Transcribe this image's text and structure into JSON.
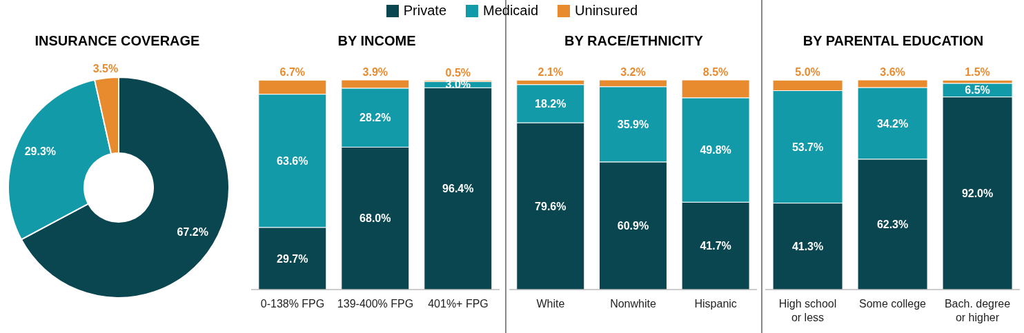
{
  "chart_data": [
    {
      "type": "donut",
      "title": "INSURANCE COVERAGE",
      "legend": "top",
      "categories": [
        "Private",
        "Medicaid",
        "Uninsured"
      ],
      "values": [
        67.2,
        29.3,
        3.5
      ],
      "colors": [
        "#0a4650",
        "#139aa8",
        "#e88a2e"
      ],
      "value_labels": [
        "67.2%",
        "29.3%",
        "3.5%"
      ]
    },
    {
      "type": "bar",
      "title": "BY INCOME",
      "stacked": true,
      "categories": [
        "0-138% FPG",
        "139-400% FPG",
        "401%+ FPG"
      ],
      "series": [
        {
          "color": "#0a4650",
          "values": [
            29.7,
            68.0,
            96.4
          ],
          "value_labels": [
            "29.7%",
            "68.0%",
            "96.4%"
          ]
        },
        {
          "color": "#139aa8",
          "values": [
            63.6,
            28.2,
            3.0
          ],
          "value_labels": [
            "63.6%",
            "28.2%",
            "3.0%"
          ]
        },
        {
          "color": "#e88a2e",
          "values": [
            6.7,
            3.9,
            0.5
          ],
          "value_labels": [
            "6.7%",
            "3.9%",
            "0.5%"
          ]
        }
      ]
    },
    {
      "type": "bar",
      "title": "BY RACE/ETHNICITY",
      "stacked": true,
      "categories": [
        "White",
        "Nonwhite",
        "Hispanic"
      ],
      "series": [
        {
          "color": "#0a4650",
          "values": [
            79.6,
            60.9,
            41.7
          ],
          "value_labels": [
            "79.6%",
            "60.9%",
            "41.7%"
          ]
        },
        {
          "color": "#139aa8",
          "values": [
            18.2,
            35.9,
            49.8
          ],
          "value_labels": [
            "18.2%",
            "35.9%",
            "49.8%"
          ]
        },
        {
          "color": "#e88a2e",
          "values": [
            2.1,
            3.2,
            8.5
          ],
          "value_labels": [
            "2.1%",
            "3.2%",
            "8.5%"
          ]
        }
      ]
    },
    {
      "type": "bar",
      "title": "BY PARENTAL EDUCATION",
      "stacked": true,
      "categories": [
        "High school or less",
        "Some college",
        "Bach. degree or higher"
      ],
      "series": [
        {
          "color": "#0a4650",
          "values": [
            41.3,
            62.3,
            92.0
          ],
          "value_labels": [
            "41.3%",
            "62.3%",
            "92.0%"
          ]
        },
        {
          "color": "#139aa8",
          "values": [
            53.7,
            34.2,
            6.5
          ],
          "value_labels": [
            "53.7%",
            "34.2%",
            "6.5%"
          ]
        },
        {
          "color": "#e88a2e",
          "values": [
            5.0,
            3.6,
            1.5
          ],
          "value_labels": [
            "5.0%",
            "3.6%",
            "1.5%"
          ]
        }
      ]
    }
  ]
}
